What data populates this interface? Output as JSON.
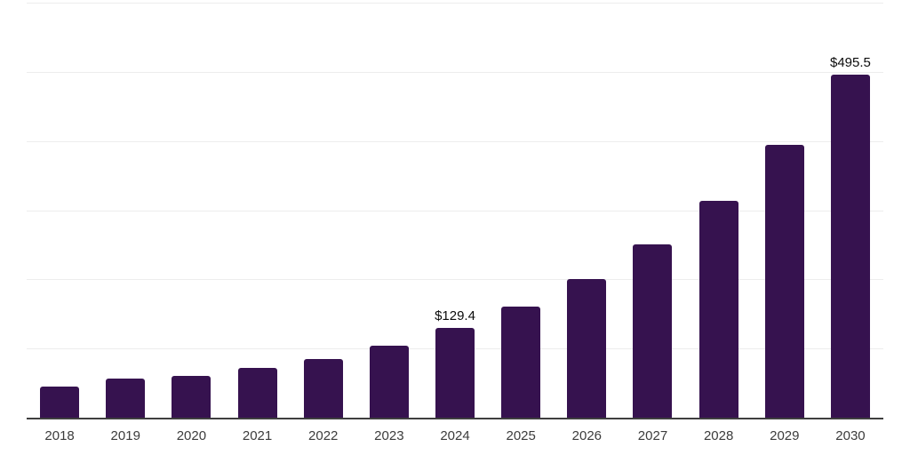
{
  "chart_data": {
    "type": "bar",
    "title": "",
    "xlabel": "",
    "ylabel": "",
    "categories": [
      "2018",
      "2019",
      "2020",
      "2021",
      "2022",
      "2023",
      "2024",
      "2025",
      "2026",
      "2027",
      "2028",
      "2029",
      "2030"
    ],
    "values": [
      45.3,
      56.0,
      60.5,
      71.4,
      85.2,
      104.5,
      129.4,
      160.2,
      200.1,
      250.2,
      313.2,
      394.6,
      495.5
    ],
    "labeled_points": [
      {
        "category": "2024",
        "label": "$129.4"
      },
      {
        "category": "2030",
        "label": "$495.5"
      }
    ],
    "ylim": [
      0,
      600
    ],
    "gridline_interval": 100,
    "grid": "horizontal",
    "legend": "none",
    "y_tick_labels_visible": false,
    "bar_color": "#36124F",
    "gridline_color": "#EDEDED",
    "axis_color": "#3F3F3F",
    "xtick_color": "#3C3C3C",
    "data_label_color": "#0B0B0B"
  }
}
